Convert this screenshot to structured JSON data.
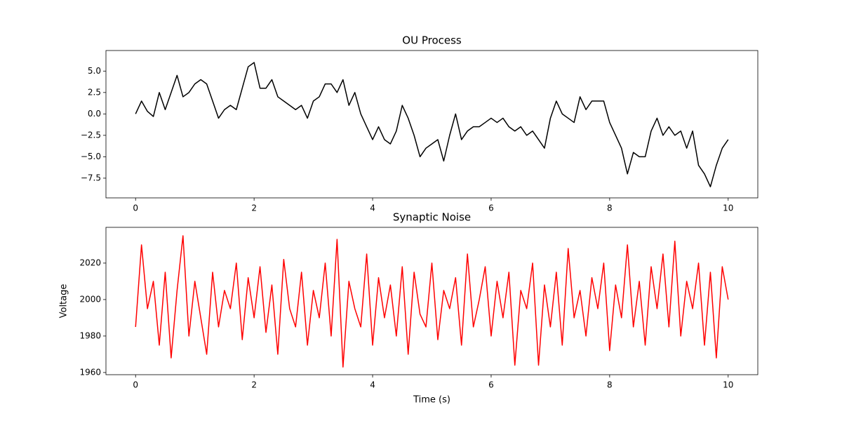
{
  "chart_data": [
    {
      "type": "line",
      "title": "OU Process",
      "x": [
        0,
        0.1,
        0.2,
        0.3,
        0.4,
        0.5,
        0.6,
        0.7,
        0.8,
        0.9,
        1,
        1.1,
        1.2,
        1.3,
        1.4,
        1.5,
        1.6,
        1.7,
        1.8,
        1.9,
        2,
        2.1,
        2.2,
        2.3,
        2.4,
        2.5,
        2.6,
        2.7,
        2.8,
        2.9,
        3,
        3.1,
        3.2,
        3.3,
        3.4,
        3.5,
        3.6,
        3.7,
        3.8,
        3.9,
        4,
        4.1,
        4.2,
        4.3,
        4.4,
        4.5,
        4.6,
        4.7,
        4.8,
        4.9,
        5,
        5.1,
        5.2,
        5.3,
        5.4,
        5.5,
        5.6,
        5.7,
        5.8,
        5.9,
        6,
        6.1,
        6.2,
        6.3,
        6.4,
        6.5,
        6.6,
        6.7,
        6.8,
        6.9,
        7,
        7.1,
        7.2,
        7.3,
        7.4,
        7.5,
        7.6,
        7.7,
        7.8,
        7.9,
        8,
        8.1,
        8.2,
        8.3,
        8.4,
        8.5,
        8.6,
        8.7,
        8.8,
        8.9,
        9,
        9.1,
        9.2,
        9.3,
        9.4,
        9.5,
        9.6,
        9.7,
        9.8,
        9.9,
        10
      ],
      "series": [
        {
          "color": "#000000",
          "values": [
            0,
            1.5,
            0.3,
            -0.3,
            2.5,
            0.5,
            2.5,
            4.5,
            2,
            2.5,
            3.5,
            4,
            3.5,
            1.5,
            -0.5,
            0.5,
            1,
            0.5,
            3,
            5.5,
            6,
            3,
            3,
            4,
            2,
            1.5,
            1,
            0.5,
            1,
            -0.5,
            1.5,
            2,
            3.5,
            3.5,
            2.5,
            4,
            1,
            2.5,
            0,
            -1.5,
            -3,
            -1.5,
            -3,
            -3.5,
            -2,
            1,
            -0.5,
            -2.5,
            -5,
            -4,
            -3.5,
            -3,
            -5.5,
            -2.5,
            0,
            -3,
            -2,
            -1.5,
            -1.5,
            -1,
            -0.5,
            -1,
            -0.5,
            -1.5,
            -2,
            -1.5,
            -2.5,
            -2,
            -3,
            -4,
            -0.5,
            1.5,
            0,
            -0.5,
            -1,
            2,
            0.5,
            1.5,
            1.5,
            1.5,
            -1,
            -2.5,
            -4,
            -7,
            -4.5,
            -5,
            -5,
            -2,
            -0.5,
            -2.5,
            -1.5,
            -2.5,
            -2,
            -4,
            -2,
            -6,
            -7,
            -8.5,
            -6,
            -4,
            -3
          ]
        }
      ],
      "xlim": [
        -0.5,
        10.5
      ],
      "xticks": [
        0,
        2,
        4,
        6,
        8,
        10
      ],
      "ylim": [
        -9.8,
        7.4
      ],
      "yticks": [
        {
          "value": -7.5,
          "label": "−7.5"
        },
        {
          "value": -5,
          "label": "−5.0"
        },
        {
          "value": -2.5,
          "label": "−2.5"
        },
        {
          "value": 0,
          "label": "0.0"
        },
        {
          "value": 2.5,
          "label": "2.5"
        },
        {
          "value": 5,
          "label": "5.0"
        }
      ]
    },
    {
      "type": "line",
      "title": "Synaptic Noise",
      "xlabel": "Time (s)",
      "ylabel": "Voltage",
      "x": [
        0,
        0.1,
        0.2,
        0.3,
        0.4,
        0.5,
        0.6,
        0.7,
        0.8,
        0.9,
        1,
        1.1,
        1.2,
        1.3,
        1.4,
        1.5,
        1.6,
        1.7,
        1.8,
        1.9,
        2,
        2.1,
        2.2,
        2.3,
        2.4,
        2.5,
        2.6,
        2.7,
        2.8,
        2.9,
        3,
        3.1,
        3.2,
        3.3,
        3.4,
        3.5,
        3.6,
        3.7,
        3.8,
        3.9,
        4,
        4.1,
        4.2,
        4.3,
        4.4,
        4.5,
        4.6,
        4.7,
        4.8,
        4.9,
        5,
        5.1,
        5.2,
        5.3,
        5.4,
        5.5,
        5.6,
        5.7,
        5.8,
        5.9,
        6,
        6.1,
        6.2,
        6.3,
        6.4,
        6.5,
        6.6,
        6.7,
        6.8,
        6.9,
        7,
        7.1,
        7.2,
        7.3,
        7.4,
        7.5,
        7.6,
        7.7,
        7.8,
        7.9,
        8,
        8.1,
        8.2,
        8.3,
        8.4,
        8.5,
        8.6,
        8.7,
        8.8,
        8.9,
        9,
        9.1,
        9.2,
        9.3,
        9.4,
        9.5,
        9.6,
        9.7,
        9.8,
        9.9,
        10
      ],
      "series": [
        {
          "color": "#ff0000",
          "values": [
            1985,
            2030,
            1995,
            2010,
            1975,
            2015,
            1968,
            2005,
            2035,
            1980,
            2010,
            1990,
            1970,
            2015,
            1985,
            2005,
            1995,
            2020,
            1978,
            2012,
            1990,
            2018,
            1982,
            2008,
            1970,
            2022,
            1995,
            1985,
            2015,
            1975,
            2005,
            1990,
            2020,
            1980,
            2033,
            1963,
            2010,
            1995,
            1985,
            2025,
            1975,
            2012,
            1990,
            2008,
            1980,
            2018,
            1970,
            2015,
            1992,
            1985,
            2020,
            1978,
            2005,
            1995,
            2012,
            1975,
            2025,
            1985,
            2000,
            2018,
            1980,
            2010,
            1990,
            2015,
            1964,
            2005,
            1995,
            2020,
            1964,
            2008,
            1985,
            2015,
            1975,
            2028,
            1990,
            2005,
            1980,
            2012,
            1995,
            2020,
            1972,
            2008,
            1990,
            2030,
            1985,
            2010,
            1975,
            2018,
            1995,
            2025,
            1985,
            2032,
            1980,
            2010,
            1995,
            2020,
            1975,
            2015,
            1968,
            2018,
            2000
          ]
        }
      ],
      "xlim": [
        -0.5,
        10.5
      ],
      "xticks": [
        0,
        2,
        4,
        6,
        8,
        10
      ],
      "ylim": [
        1958.8,
        2039.6
      ],
      "yticks": [
        1960,
        1980,
        2000,
        2020
      ]
    }
  ]
}
